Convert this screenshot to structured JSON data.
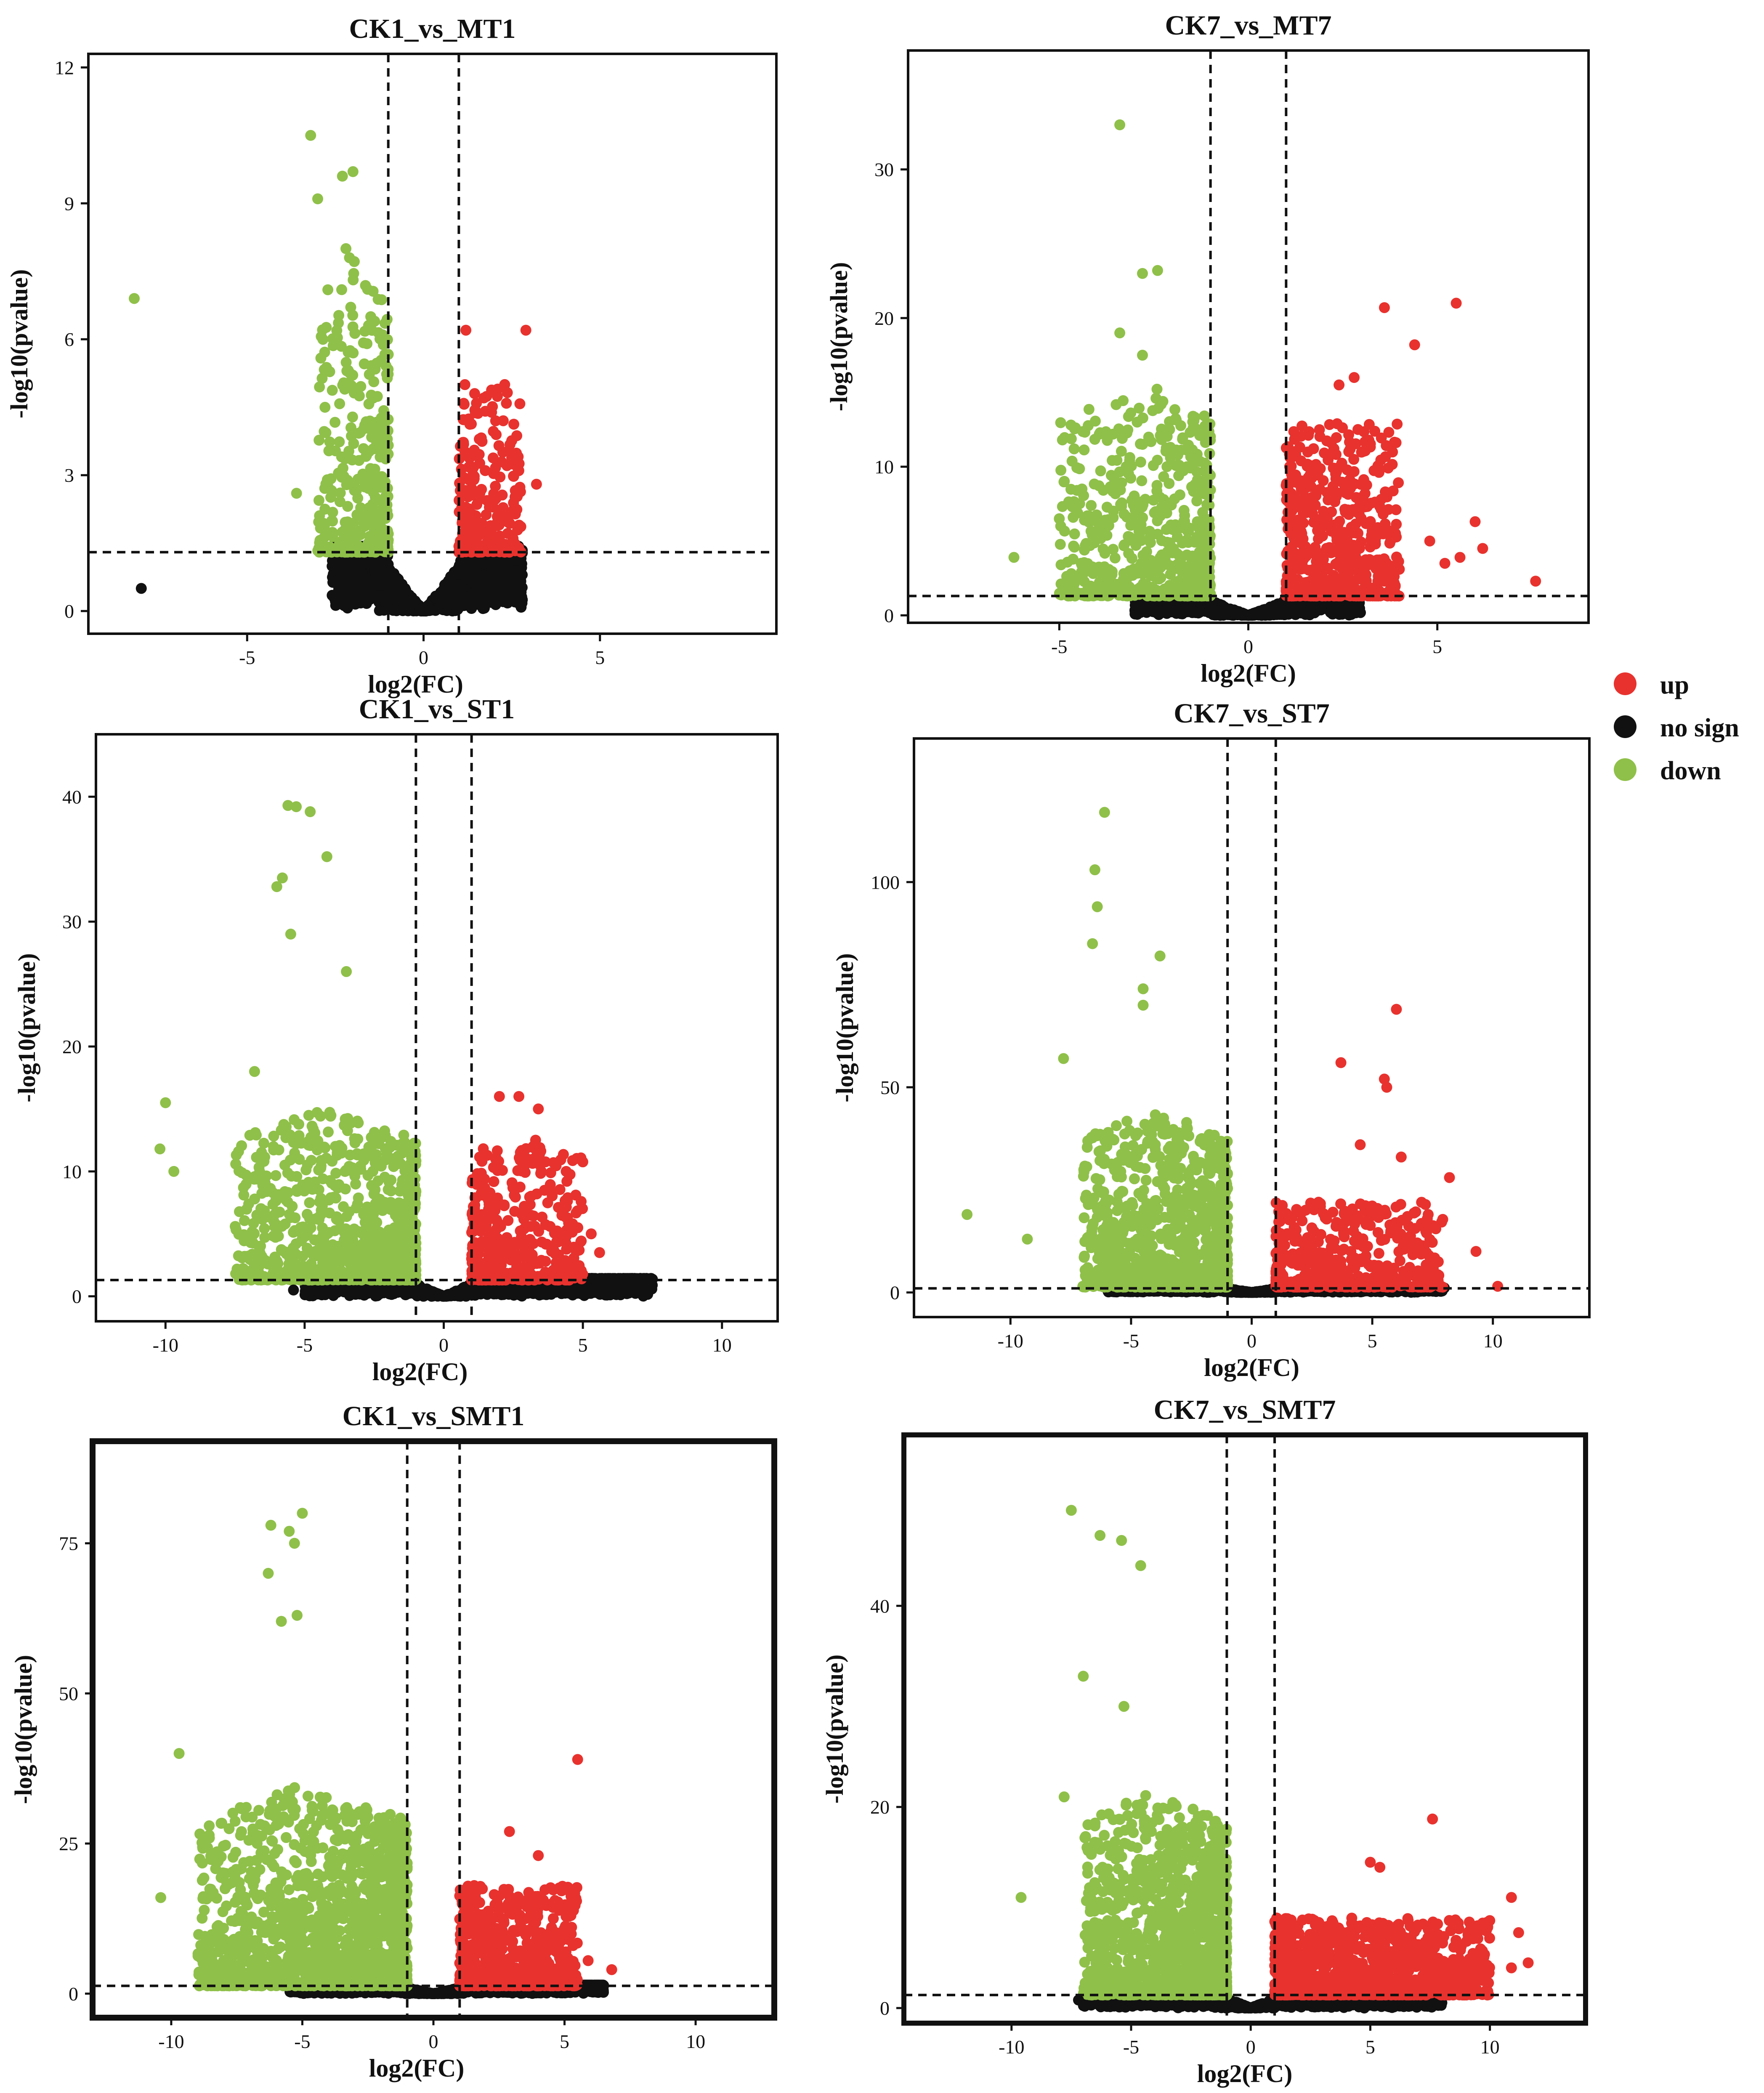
{
  "legend": {
    "items": [
      {
        "label": "up",
        "color": "#e8322e"
      },
      {
        "label": "no sign",
        "color": "#111111"
      },
      {
        "label": "down",
        "color": "#8fc049"
      }
    ]
  },
  "chart_data": [
    {
      "type": "scatter",
      "title": "CK1_vs_MT1",
      "xlabel": "log2(FC)",
      "ylabel": "-log10(pvalue)",
      "xlim": [
        -9.5,
        10
      ],
      "ylim": [
        -0.5,
        12.3
      ],
      "xticks": [
        -5,
        0,
        5
      ],
      "yticks": [
        0,
        3,
        6,
        9,
        12
      ],
      "fc_threshold": 1,
      "p_threshold": 1.3,
      "down_points": [
        [
          -8.2,
          6.9
        ],
        [
          -3.2,
          10.5
        ],
        [
          -3,
          9.1
        ],
        [
          -2.3,
          9.6
        ],
        [
          -2,
          9.7
        ],
        [
          -2.2,
          8.0
        ],
        [
          -2.1,
          7.8
        ],
        [
          -3.6,
          2.6
        ]
      ],
      "up_points": [
        [
          1.2,
          6.2
        ],
        [
          2.9,
          6.2
        ],
        [
          2.3,
          5.0
        ],
        [
          2.1,
          4.9
        ],
        [
          2.7,
          3.1
        ],
        [
          3.2,
          2.8
        ]
      ],
      "nosign_points": [
        [
          -8,
          0.5
        ],
        [
          2.8,
          0.25
        ]
      ],
      "extent": {
        "down_x": [
          -3,
          -1
        ],
        "down_y": [
          1.3,
          8
        ],
        "up_x": [
          1,
          2.8
        ],
        "up_y": [
          1.3,
          5
        ],
        "ns_x": [
          -2.6,
          2.8
        ],
        "ns_y": [
          0,
          1.4
        ]
      },
      "counts": {
        "down": 360,
        "up": 240,
        "ns": 1300
      }
    },
    {
      "type": "scatter",
      "title": "CK7_vs_MT7",
      "xlabel": "log2(FC)",
      "ylabel": "-log10(pvalue)",
      "xlim": [
        -9,
        9
      ],
      "ylim": [
        -0.5,
        38
      ],
      "xticks": [
        -5,
        0,
        5
      ],
      "yticks": [
        0,
        10,
        20,
        30
      ],
      "fc_threshold": 1,
      "p_threshold": 1.3,
      "down_points": [
        [
          -3.4,
          33
        ],
        [
          -2.8,
          23
        ],
        [
          -2.4,
          23.2
        ],
        [
          -3.4,
          19
        ],
        [
          -2.8,
          17.5
        ],
        [
          -6.2,
          3.9
        ],
        [
          -5,
          6.5
        ],
        [
          -4.4,
          8.5
        ]
      ],
      "up_points": [
        [
          5.5,
          21
        ],
        [
          3.6,
          20.7
        ],
        [
          4.4,
          18.2
        ],
        [
          2.8,
          16
        ],
        [
          7.6,
          2.3
        ],
        [
          6,
          6.3
        ],
        [
          6.2,
          4.5
        ],
        [
          5.2,
          3.5
        ],
        [
          5.6,
          3.9
        ],
        [
          4.8,
          5
        ],
        [
          2.4,
          15.5
        ],
        [
          2.9,
          12.5
        ]
      ],
      "nosign_points": [],
      "extent": {
        "down_x": [
          -5,
          -1
        ],
        "down_y": [
          1.3,
          16
        ],
        "up_x": [
          1,
          4
        ],
        "up_y": [
          1.3,
          13
        ],
        "ns_x": [
          -3,
          3
        ],
        "ns_y": [
          0,
          1.4
        ]
      },
      "counts": {
        "down": 650,
        "up": 600,
        "ns": 1300
      }
    },
    {
      "type": "scatter",
      "title": "CK1_vs_ST1",
      "xlabel": "log2(FC)",
      "ylabel": "-log10(pvalue)",
      "xlim": [
        -12.5,
        12
      ],
      "ylim": [
        -2,
        45
      ],
      "xticks": [
        -10,
        -5,
        0,
        5,
        10
      ],
      "yticks": [
        0,
        10,
        20,
        30,
        40
      ],
      "fc_threshold": 1,
      "p_threshold": 1.3,
      "down_points": [
        [
          -5.6,
          39.3
        ],
        [
          -5.3,
          39.2
        ],
        [
          -4.8,
          38.8
        ],
        [
          -4.2,
          35.2
        ],
        [
          -5.8,
          33.5
        ],
        [
          -6,
          32.8
        ],
        [
          -10,
          15.5
        ],
        [
          -10.2,
          11.8
        ],
        [
          -9.7,
          10
        ],
        [
          -6.8,
          18
        ],
        [
          -5.5,
          29
        ],
        [
          -3.5,
          26
        ]
      ],
      "up_points": [
        [
          2,
          16
        ],
        [
          2.7,
          16
        ],
        [
          3.4,
          15
        ],
        [
          4.4,
          10
        ],
        [
          5.6,
          3.5
        ],
        [
          5.3,
          5
        ],
        [
          3.3,
          12.5
        ]
      ],
      "nosign_points": [
        [
          -5.4,
          0.5
        ],
        [
          5.5,
          0.8
        ],
        [
          6.2,
          0.9
        ],
        [
          7.4,
          0.8
        ],
        [
          6.8,
          0.9
        ]
      ],
      "extent": {
        "down_x": [
          -7.5,
          -1
        ],
        "down_y": [
          1.3,
          15
        ],
        "up_x": [
          1,
          5
        ],
        "up_y": [
          1.3,
          12
        ],
        "ns_x": [
          -5,
          7.5
        ],
        "ns_y": [
          0,
          1.4
        ]
      },
      "counts": {
        "down": 900,
        "up": 380,
        "ns": 1500
      }
    },
    {
      "type": "scatter",
      "title": "CK7_vs_ST7",
      "xlabel": "log2(FC)",
      "ylabel": "-log10(pvalue)",
      "xlim": [
        -14,
        14
      ],
      "ylim": [
        -6,
        135
      ],
      "xticks": [
        -10,
        -5,
        0,
        5,
        10
      ],
      "yticks": [
        0,
        50,
        100
      ],
      "fc_threshold": 1,
      "p_threshold": 1,
      "down_points": [
        [
          -6.1,
          117
        ],
        [
          -6.5,
          103
        ],
        [
          -6.4,
          94
        ],
        [
          -6.6,
          85
        ],
        [
          -3.8,
          82
        ],
        [
          -4.5,
          74
        ],
        [
          -7.8,
          57
        ],
        [
          -11.8,
          19
        ],
        [
          -7,
          1.5
        ],
        [
          -9.3,
          13
        ],
        [
          -4.5,
          70
        ]
      ],
      "up_points": [
        [
          6,
          69
        ],
        [
          5.5,
          52
        ],
        [
          3.7,
          56
        ],
        [
          5.6,
          50
        ],
        [
          6.2,
          33
        ],
        [
          4.5,
          36
        ],
        [
          8.2,
          28
        ],
        [
          9.3,
          10
        ],
        [
          10.2,
          1.5
        ]
      ],
      "nosign_points": [],
      "extent": {
        "down_x": [
          -7,
          -1
        ],
        "down_y": [
          1.3,
          45
        ],
        "up_x": [
          1,
          8
        ],
        "up_y": [
          1.3,
          22
        ],
        "ns_x": [
          -6,
          8
        ],
        "ns_y": [
          0,
          1.4
        ]
      },
      "counts": {
        "down": 1000,
        "up": 500,
        "ns": 1500
      }
    },
    {
      "type": "scatter",
      "title": "CK1_vs_SMT1",
      "xlabel": "log2(FC)",
      "ylabel": "-log10(pvalue)",
      "xlim": [
        -13,
        13
      ],
      "ylim": [
        -4,
        92
      ],
      "xticks": [
        -10,
        -5,
        0,
        5,
        10
      ],
      "yticks": [
        0,
        25,
        50,
        75
      ],
      "fc_threshold": 1,
      "p_threshold": 1.3,
      "down_points": [
        [
          -5,
          80
        ],
        [
          -6.2,
          78
        ],
        [
          -5.5,
          77
        ],
        [
          -5.3,
          75
        ],
        [
          -10.4,
          16
        ],
        [
          -9.7,
          40
        ],
        [
          -5.8,
          62
        ],
        [
          -5.2,
          63
        ],
        [
          -6.3,
          70
        ]
      ],
      "up_points": [
        [
          5.5,
          39
        ],
        [
          2.9,
          27
        ],
        [
          4,
          23
        ],
        [
          6.8,
          4
        ],
        [
          5.9,
          5.5
        ]
      ],
      "nosign_points": [],
      "extent": {
        "down_x": [
          -9,
          -1
        ],
        "down_y": [
          1.3,
          35
        ],
        "up_x": [
          1,
          5.5
        ],
        "up_y": [
          1.3,
          18
        ],
        "ns_x": [
          -5.5,
          6.5
        ],
        "ns_y": [
          0,
          1.4
        ]
      },
      "counts": {
        "down": 1500,
        "up": 650,
        "ns": 1900
      }
    },
    {
      "type": "scatter",
      "title": "CK7_vs_SMT7",
      "xlabel": "log2(FC)",
      "ylabel": "-log10(pvalue)",
      "xlim": [
        -14.5,
        14
      ],
      "ylim": [
        -1.5,
        57
      ],
      "xticks": [
        -10,
        -5,
        0,
        5,
        10
      ],
      "yticks": [
        0,
        20,
        40
      ],
      "fc_threshold": 1,
      "p_threshold": 1.3,
      "down_points": [
        [
          -7.5,
          49.5
        ],
        [
          -6.3,
          47
        ],
        [
          -5.4,
          46.5
        ],
        [
          -4.6,
          44
        ],
        [
          -5.3,
          30
        ],
        [
          -9.6,
          11
        ],
        [
          -7,
          33
        ],
        [
          -7.8,
          21
        ]
      ],
      "up_points": [
        [
          7.6,
          18.8
        ],
        [
          5,
          14.5
        ],
        [
          5.4,
          14
        ],
        [
          10.9,
          11
        ],
        [
          11.6,
          4.5
        ],
        [
          10.9,
          4
        ],
        [
          11.2,
          7.5
        ]
      ],
      "nosign_points": [
        [
          -7.2,
          0.8
        ]
      ],
      "extent": {
        "down_x": [
          -7,
          -1
        ],
        "down_y": [
          1.3,
          22
        ],
        "up_x": [
          1,
          10
        ],
        "up_y": [
          1.3,
          9
        ],
        "ns_x": [
          -7,
          8
        ],
        "ns_y": [
          0,
          1.4
        ]
      },
      "counts": {
        "down": 1300,
        "up": 1100,
        "ns": 1700
      }
    }
  ]
}
